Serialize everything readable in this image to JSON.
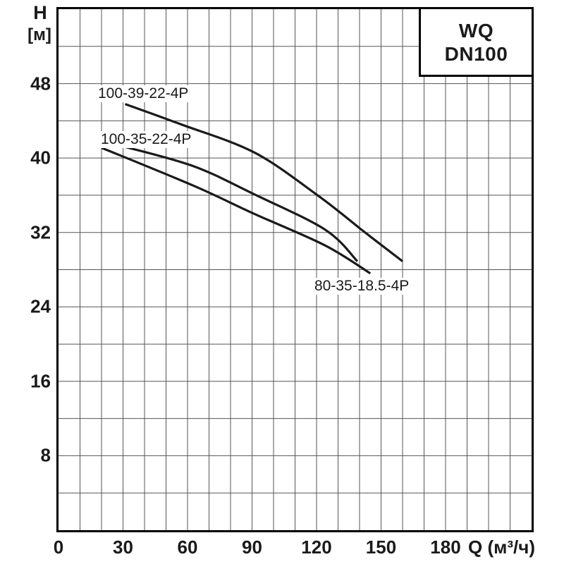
{
  "title_box": {
    "line1": "WQ",
    "line2": "DN100"
  },
  "axes": {
    "y_name": "H",
    "y_unit": "[м]",
    "x_name": "Q (м³/ч)"
  },
  "colors": {
    "curve": "#1a1a1a",
    "grid": "#555555",
    "border": "#000000",
    "background": "#ffffff"
  },
  "chart_data": {
    "type": "line",
    "title": "WQ DN100",
    "xlabel": "Q (м³/ч)",
    "ylabel": "H [м]",
    "xlim": [
      0,
      220
    ],
    "ylim": [
      0,
      56
    ],
    "grid": true,
    "x_grid_step": 10,
    "y_grid_step": 4,
    "x_tick_labels": [
      0,
      30,
      60,
      90,
      120,
      150,
      180
    ],
    "y_tick_labels": [
      48,
      40,
      32,
      24,
      16,
      8
    ],
    "legend_position": "labels-on-plot",
    "series": [
      {
        "name": "100-39-22-4P",
        "points": [
          [
            31,
            45.8
          ],
          [
            56,
            43.7
          ],
          [
            91,
            40.6
          ],
          [
            121,
            35.9
          ],
          [
            142,
            32.1
          ],
          [
            160,
            28.9
          ]
        ]
      },
      {
        "name": "100-35-22-4P",
        "points": [
          [
            31,
            41.2
          ],
          [
            63,
            39.1
          ],
          [
            91,
            36.1
          ],
          [
            124,
            32.3
          ],
          [
            139,
            28.9
          ]
        ]
      },
      {
        "name": "80-35-18.5-4P",
        "points": [
          [
            20,
            41.1
          ],
          [
            63,
            37.0
          ],
          [
            91,
            34.0
          ],
          [
            124,
            30.6
          ],
          [
            145,
            27.6
          ]
        ]
      }
    ]
  }
}
